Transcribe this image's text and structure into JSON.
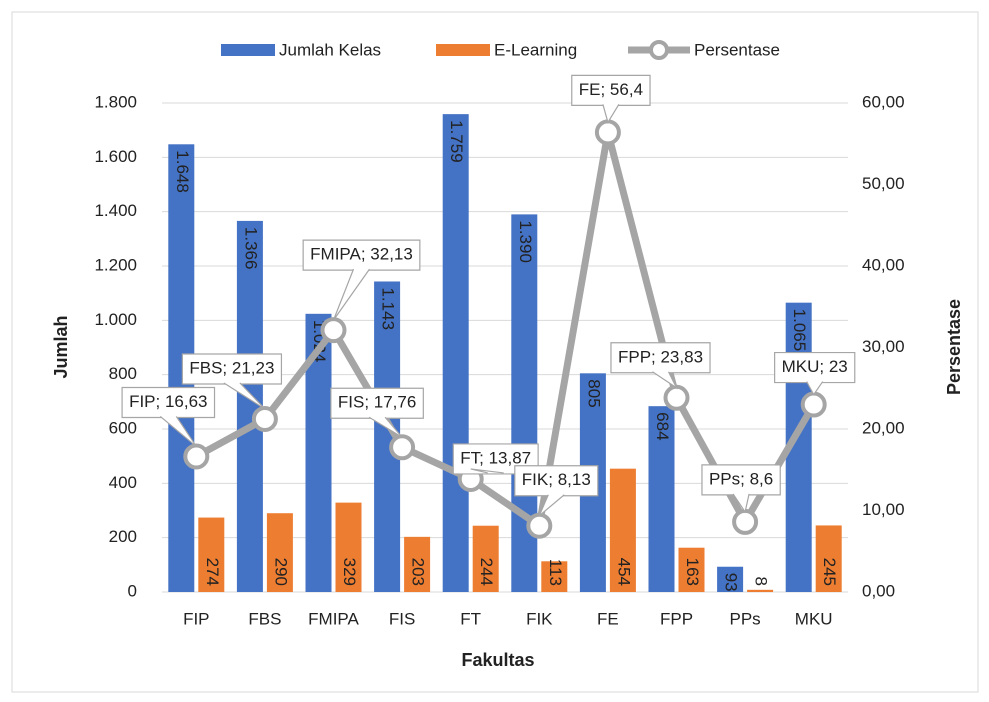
{
  "chart_data": {
    "type": "bar-line",
    "x_label": "Fakultas",
    "y_label": "Jumlah",
    "y2_label": "Persentase",
    "categories": [
      "FIP",
      "FBS",
      "FMIPA",
      "FIS",
      "FT",
      "FIK",
      "FE",
      "FPP",
      "PPs",
      "MKU"
    ],
    "series": [
      {
        "name": "Jumlah Kelas",
        "color": "#4472c4",
        "type": "bar",
        "values": [
          1648,
          1366,
          1024,
          1143,
          1759,
          1390,
          805,
          684,
          93,
          1065
        ],
        "value_labels": [
          "1.648",
          "1.366",
          "1.024",
          "1.143",
          "1.759",
          "1.390",
          "805",
          "684",
          "93",
          "1.065"
        ]
      },
      {
        "name": "E-Learning",
        "color": "#ed7d31",
        "type": "bar",
        "values": [
          274,
          290,
          329,
          203,
          244,
          113,
          454,
          163,
          8,
          245
        ]
      },
      {
        "name": "Persentase",
        "color": "#a5a5a5",
        "type": "line",
        "axis": "y2",
        "values": [
          16.63,
          21.23,
          32.13,
          17.76,
          13.87,
          8.13,
          56.4,
          23.83,
          8.6,
          23
        ],
        "value_labels": [
          "FIP; 16,63",
          "FBS; 21,23",
          "FMIPA; 32,13",
          "FIS; 17,76",
          "FT; 13,87",
          "FIK; 8,13",
          "FE; 56,4",
          "FPP; 23,83",
          "PPs; 8,6",
          "MKU; 23"
        ]
      }
    ],
    "ylim": [
      0,
      1800
    ],
    "yticks": [
      0,
      200,
      400,
      600,
      800,
      {
        "value": 1000,
        "label": "1.000"
      },
      {
        "value": 1200,
        "label": "1.200"
      },
      {
        "value": 1400,
        "label": "1.400"
      },
      {
        "value": 1600,
        "label": "1.600"
      },
      {
        "value": 1800,
        "label": "1.800"
      }
    ],
    "y2lim": [
      0,
      60
    ],
    "y2ticks": [
      {
        "value": 0,
        "label": "0,00"
      },
      {
        "value": 10,
        "label": "10,00"
      },
      {
        "value": 20,
        "label": "20,00"
      },
      {
        "value": 30,
        "label": "30,00"
      },
      {
        "value": 40,
        "label": "40,00"
      },
      {
        "value": 50,
        "label": "50,00"
      },
      {
        "value": 60,
        "label": "60,00"
      }
    ],
    "grid": true,
    "legend": "top"
  }
}
